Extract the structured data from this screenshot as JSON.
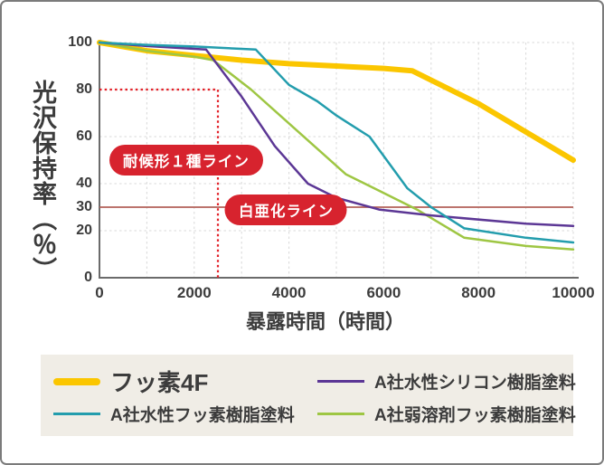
{
  "chart_data": {
    "type": "line",
    "title": "",
    "xlabel": "暴露時間（時間）",
    "ylabel": "光沢保持率（％）",
    "xlim": [
      0,
      10000
    ],
    "ylim": [
      0,
      100
    ],
    "x_ticks": [
      0,
      2000,
      4000,
      6000,
      8000,
      10000
    ],
    "y_ticks": [
      100,
      80,
      60,
      40,
      30,
      20,
      0
    ],
    "x_gridlines": [
      1000,
      2000,
      3000,
      4000,
      5000,
      6000,
      7000,
      8000,
      9000,
      10000
    ],
    "y_gridlines": [
      20,
      40,
      60,
      80,
      100
    ],
    "grid": true,
    "legend_position": "bottom",
    "series": [
      {
        "name": "フッ素4F",
        "color": "#FBC600",
        "stroke_width": 6,
        "points": [
          [
            0,
            100
          ],
          [
            1000,
            96.5
          ],
          [
            2000,
            94.5
          ],
          [
            3000,
            92.5
          ],
          [
            4000,
            91
          ],
          [
            5000,
            90
          ],
          [
            6000,
            89
          ],
          [
            6600,
            88
          ],
          [
            8000,
            74
          ],
          [
            9000,
            62
          ],
          [
            10000,
            50
          ]
        ]
      },
      {
        "name": "A社弱溶剤フッ素樹脂塗料",
        "color": "#9EC643",
        "stroke_width": 2.5,
        "points": [
          [
            0,
            100
          ],
          [
            1000,
            96.5
          ],
          [
            2000,
            94
          ],
          [
            2400,
            92.5
          ],
          [
            3200,
            80
          ],
          [
            4200,
            62
          ],
          [
            5200,
            44
          ],
          [
            5900,
            37
          ],
          [
            6700,
            29
          ],
          [
            7700,
            17
          ],
          [
            9000,
            13.5
          ],
          [
            10000,
            12
          ]
        ]
      },
      {
        "name": "A社水性シリコン樹脂塗料",
        "color": "#5C3795",
        "stroke_width": 2.5,
        "points": [
          [
            0,
            100
          ],
          [
            1000,
            98.5
          ],
          [
            2250,
            97
          ],
          [
            3000,
            77
          ],
          [
            3700,
            56
          ],
          [
            4400,
            40
          ],
          [
            5000,
            34
          ],
          [
            5900,
            29
          ],
          [
            7000,
            26.5
          ],
          [
            9000,
            23
          ],
          [
            10000,
            22
          ]
        ]
      },
      {
        "name": "A社水性フッ素樹脂塗料",
        "color": "#239DAD",
        "stroke_width": 2.5,
        "points": [
          [
            0,
            100
          ],
          [
            1000,
            99
          ],
          [
            2000,
            98.3
          ],
          [
            3300,
            97
          ],
          [
            4000,
            82
          ],
          [
            4600,
            75
          ],
          [
            5000,
            69
          ],
          [
            5700,
            60
          ],
          [
            6500,
            38
          ],
          [
            7000,
            30
          ],
          [
            7700,
            21
          ],
          [
            9000,
            17
          ],
          [
            10000,
            15
          ]
        ]
      }
    ],
    "annotations": {
      "weathering_type1": {
        "label": "耐候形１種ライン",
        "style": "dotted",
        "line_color": "#E22128",
        "badge_color": "#D7232E",
        "y": 80,
        "x_end": 2500,
        "badge_center": {
          "x": 1830,
          "y": 50
        }
      },
      "chalking": {
        "label": "白亜化ライン",
        "style": "solid",
        "line_color": "#B26158",
        "badge_color": "#D7232E",
        "y": 30,
        "badge_center": {
          "x": 3940,
          "y": 29
        }
      }
    }
  },
  "legend": {
    "items": [
      {
        "label": "フッ素4F",
        "color": "#FBC600",
        "emphasis": true
      },
      {
        "label": "A社水性シリコン樹脂塗料",
        "color": "#5C3795",
        "emphasis": false
      },
      {
        "label": "A社水性フッ素樹脂塗料",
        "color": "#239DAD",
        "emphasis": false
      },
      {
        "label": "A社弱溶剤フッ素樹脂塗料",
        "color": "#9EC643",
        "emphasis": false
      }
    ]
  },
  "colors": {
    "grid": "#D8D8D8",
    "axis": "#6B6B6B",
    "text": "#3C3C3C",
    "legend_bg": "#F0EDE6",
    "card_border": "#7B7B7B"
  }
}
